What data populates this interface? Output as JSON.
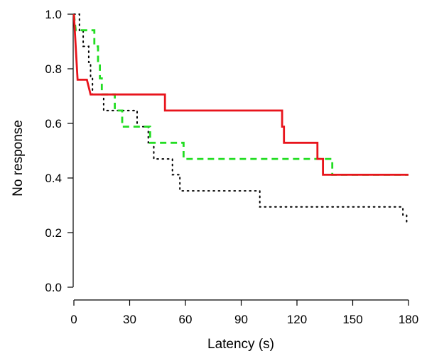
{
  "chart_data": {
    "type": "line",
    "subtype": "step",
    "title": "",
    "xlabel": "Latency (s)",
    "ylabel": "No response",
    "xlim": [
      0,
      180
    ],
    "ylim": [
      0,
      1.0
    ],
    "xticks": [
      0,
      30,
      60,
      90,
      120,
      150,
      180
    ],
    "yticks": [
      0.0,
      0.2,
      0.4,
      0.6,
      0.8,
      1.0
    ],
    "xtick_labels": [
      "0",
      "30",
      "60",
      "90",
      "120",
      "150",
      "180"
    ],
    "ytick_labels": [
      "0.0",
      "0.2",
      "0.4",
      "0.6",
      "0.8",
      "1.0"
    ],
    "grid": false,
    "legend": false,
    "series": [
      {
        "color": "#e8141c",
        "line_style": "solid",
        "points": [
          [
            0,
            1.0
          ],
          [
            0.5,
            0.94
          ],
          [
            1,
            0.88
          ],
          [
            2,
            0.76
          ],
          [
            7,
            0.76
          ],
          [
            9,
            0.706
          ],
          [
            49,
            0.706
          ],
          [
            49,
            0.647
          ],
          [
            112,
            0.647
          ],
          [
            112,
            0.588
          ],
          [
            113,
            0.588
          ],
          [
            113,
            0.529
          ],
          [
            131,
            0.529
          ],
          [
            131,
            0.47
          ],
          [
            134,
            0.47
          ],
          [
            134,
            0.412
          ],
          [
            180,
            0.412
          ]
        ]
      },
      {
        "color": "#22dd22",
        "line_style": "dashed",
        "points": [
          [
            0,
            1.0
          ],
          [
            1,
            0.941
          ],
          [
            11,
            0.941
          ],
          [
            11,
            0.882
          ],
          [
            13,
            0.882
          ],
          [
            13,
            0.824
          ],
          [
            14,
            0.824
          ],
          [
            14,
            0.765
          ],
          [
            15,
            0.765
          ],
          [
            15,
            0.706
          ],
          [
            22,
            0.706
          ],
          [
            22,
            0.647
          ],
          [
            26,
            0.647
          ],
          [
            26,
            0.588
          ],
          [
            41,
            0.588
          ],
          [
            41,
            0.529
          ],
          [
            59,
            0.529
          ],
          [
            59,
            0.47
          ],
          [
            139,
            0.47
          ],
          [
            139,
            0.412
          ],
          [
            180,
            0.412
          ]
        ]
      },
      {
        "color": "#000000",
        "line_style": "dotted",
        "points": [
          [
            0,
            1.0
          ],
          [
            3,
            1.0
          ],
          [
            3,
            0.941
          ],
          [
            5,
            0.941
          ],
          [
            5,
            0.882
          ],
          [
            8,
            0.882
          ],
          [
            8,
            0.824
          ],
          [
            9,
            0.824
          ],
          [
            9,
            0.765
          ],
          [
            10,
            0.765
          ],
          [
            10,
            0.706
          ],
          [
            16,
            0.706
          ],
          [
            16,
            0.647
          ],
          [
            34,
            0.647
          ],
          [
            34,
            0.588
          ],
          [
            40,
            0.588
          ],
          [
            40,
            0.529
          ],
          [
            43,
            0.529
          ],
          [
            43,
            0.47
          ],
          [
            53,
            0.47
          ],
          [
            53,
            0.412
          ],
          [
            57,
            0.412
          ],
          [
            57,
            0.353
          ],
          [
            100,
            0.353
          ],
          [
            100,
            0.294
          ],
          [
            177,
            0.294
          ],
          [
            177,
            0.265
          ],
          [
            179,
            0.265
          ],
          [
            179,
            0.235
          ]
        ]
      }
    ]
  }
}
